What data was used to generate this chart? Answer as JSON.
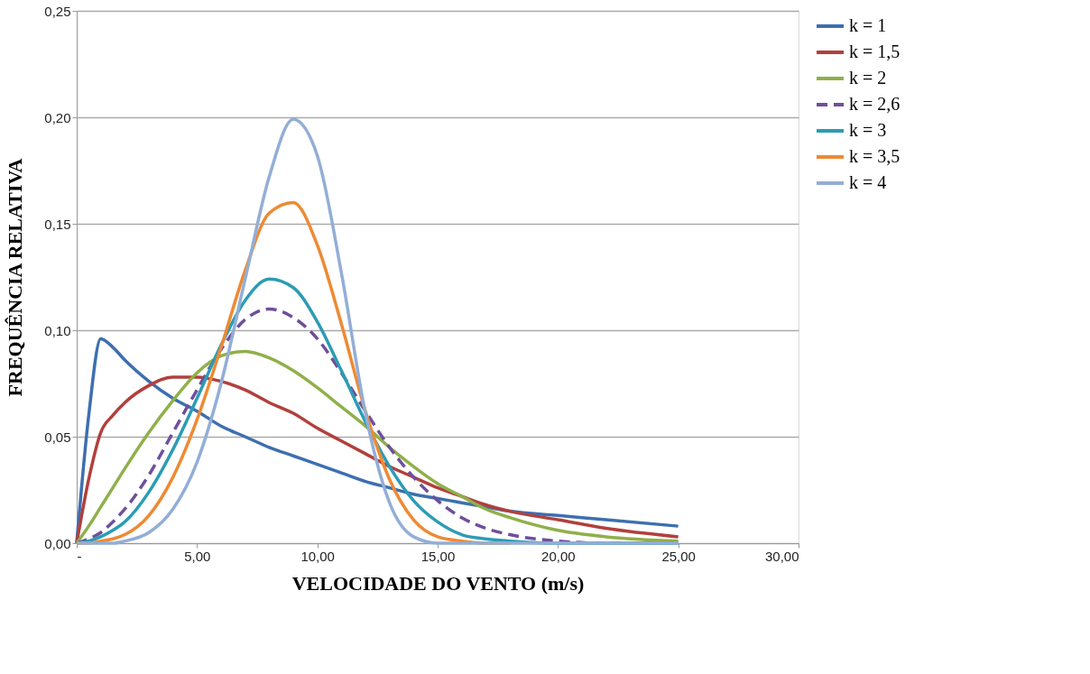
{
  "chart_data": {
    "type": "line",
    "xlabel": "VELOCIDADE  DO VENTO (m/s)",
    "ylabel": "FREQUÊNCIA  RELATIVA",
    "x": [
      0,
      0.5,
      1,
      1.5,
      2,
      3,
      4,
      5,
      6,
      7,
      8,
      9,
      10,
      11,
      12,
      13,
      14,
      15,
      16,
      17,
      18,
      20,
      22,
      25
    ],
    "series": [
      {
        "name": "k = 1",
        "color": "#3d6fb0",
        "values": [
          0,
          0.06,
          0.096,
          0.092,
          0.086,
          0.076,
          0.068,
          0.062,
          0.055,
          0.05,
          0.045,
          0.041,
          0.037,
          0.033,
          0.029,
          0.026,
          0.023,
          0.021,
          0.019,
          0.017,
          0.015,
          0.013,
          0.011,
          0.008
        ]
      },
      {
        "name": "k = 1,5",
        "color": "#b1403d",
        "values": [
          0,
          0.03,
          0.052,
          0.06,
          0.066,
          0.074,
          0.078,
          0.078,
          0.076,
          0.072,
          0.066,
          0.061,
          0.054,
          0.048,
          0.042,
          0.036,
          0.031,
          0.026,
          0.022,
          0.018,
          0.015,
          0.011,
          0.007,
          0.003
        ]
      },
      {
        "name": "k = 2",
        "color": "#8fb04a",
        "values": [
          0,
          0.008,
          0.017,
          0.026,
          0.035,
          0.052,
          0.067,
          0.08,
          0.088,
          0.09,
          0.087,
          0.081,
          0.073,
          0.064,
          0.055,
          0.045,
          0.036,
          0.028,
          0.022,
          0.016,
          0.012,
          0.006,
          0.003,
          0.001
        ]
      },
      {
        "name": "k = 2,6",
        "color": "#6f4f9c",
        "line_style": "dashed",
        "values": [
          0,
          0.002,
          0.005,
          0.01,
          0.016,
          0.032,
          0.052,
          0.072,
          0.091,
          0.105,
          0.11,
          0.106,
          0.096,
          0.08,
          0.062,
          0.045,
          0.031,
          0.02,
          0.012,
          0.007,
          0.004,
          0.001,
          0,
          0
        ]
      },
      {
        "name": "k = 3",
        "color": "#2c9cb4",
        "values": [
          0,
          0.001,
          0.003,
          0.006,
          0.01,
          0.024,
          0.044,
          0.068,
          0.093,
          0.114,
          0.124,
          0.12,
          0.104,
          0.081,
          0.057,
          0.036,
          0.02,
          0.01,
          0.004,
          0.002,
          0.001,
          0,
          0,
          0
        ]
      },
      {
        "name": "k = 3,5",
        "color": "#ee8a33",
        "values": [
          0,
          0,
          0.001,
          0.002,
          0.004,
          0.013,
          0.031,
          0.058,
          0.092,
          0.128,
          0.155,
          0.16,
          0.14,
          0.103,
          0.062,
          0.03,
          0.011,
          0.003,
          0.001,
          0,
          0,
          null,
          null,
          null
        ]
      },
      {
        "name": "k = 4",
        "color": "#93aed6",
        "values": [
          0,
          0,
          0,
          0,
          0.001,
          0.005,
          0.016,
          0.038,
          0.075,
          0.124,
          0.172,
          0.199,
          0.182,
          0.127,
          0.061,
          0.019,
          0.003,
          0,
          0,
          0,
          0,
          0,
          0,
          0
        ]
      }
    ],
    "xlim": [
      0,
      30
    ],
    "xticks": [
      {
        "value": 0,
        "label": "-"
      },
      {
        "value": 5,
        "label": "5,00"
      },
      {
        "value": 10,
        "label": "10,00"
      },
      {
        "value": 15,
        "label": "15,00"
      },
      {
        "value": 20,
        "label": "20,00"
      },
      {
        "value": 25,
        "label": "25,00"
      },
      {
        "value": 30,
        "label": "30,00"
      }
    ],
    "ylim": [
      0,
      0.25
    ],
    "yticks": [
      {
        "value": 0,
        "label": "0,00"
      },
      {
        "value": 0.05,
        "label": "0,05"
      },
      {
        "value": 0.1,
        "label": "0,10"
      },
      {
        "value": 0.15,
        "label": "0,15"
      },
      {
        "value": 0.2,
        "label": "0,20"
      },
      {
        "value": 0.25,
        "label": "0,25"
      }
    ],
    "grid": "y",
    "legend": "right",
    "line_style": "solid"
  }
}
